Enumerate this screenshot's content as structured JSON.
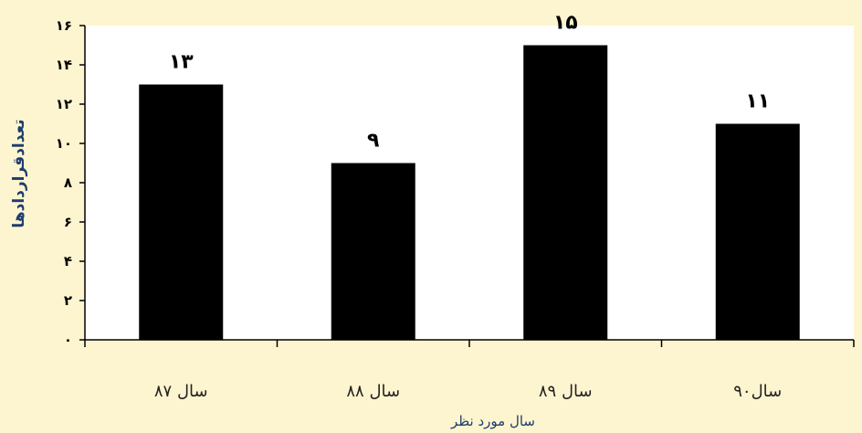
{
  "chart_data": {
    "type": "bar",
    "categories": [
      "سال ۸۷",
      "سال ۸۸",
      "سال ۸۹",
      "سال۹۰"
    ],
    "values": [
      13,
      9,
      15,
      11
    ],
    "value_labels": [
      "۱۳",
      "۹",
      "۱۵",
      "۱۱"
    ],
    "ylim": [
      0,
      16
    ],
    "yticks": [
      0,
      2,
      4,
      6,
      8,
      10,
      12,
      14,
      16
    ],
    "ytick_labels": [
      "۰",
      "۲",
      "۴",
      "۶",
      "۸",
      "۱۰",
      "۱۲",
      "۱۴",
      "۱۶"
    ],
    "ylabel": "تعدادقراردادها",
    "xlabel": "سال مورد نظر",
    "grid": false,
    "colors": {
      "bar": "#000000",
      "plot_bg": "#ffffff",
      "page_bg": "#fdf5cf",
      "axis_title": "#1f3d6e"
    }
  }
}
